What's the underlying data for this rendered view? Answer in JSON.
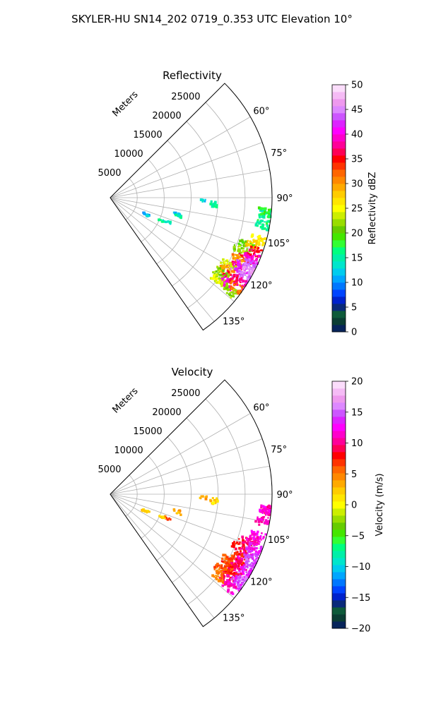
{
  "figure": {
    "title": "SKYLER-HU  SN14_202  0719_0.353 UTC Elevation 10°"
  },
  "chart_data": [
    {
      "type": "polar-sector",
      "title": "Reflectivity",
      "radial_axis_label": "Meters",
      "radial_ticks": [
        5000,
        10000,
        15000,
        20000,
        25000
      ],
      "radial_tick_labels": [
        "5000",
        "10000",
        "15000",
        "20000",
        "25000"
      ],
      "rmax": 30000,
      "angle_range_deg": [
        45,
        145
      ],
      "angle_ticks_labeled": [
        "60°",
        "75°",
        "90°",
        "105°",
        "120°",
        "135°"
      ],
      "angle_tick_values": [
        60,
        75,
        90,
        105,
        120,
        135
      ],
      "gridlines": [
        60,
        70,
        80,
        90,
        100,
        110,
        120,
        130,
        140
      ],
      "grid": true,
      "colorbar": {
        "label": "Reflectivity dBZ",
        "min": 0,
        "max": 50,
        "ticks": [
          0,
          5,
          10,
          15,
          20,
          25,
          30,
          35,
          40,
          45,
          50
        ],
        "tick_labels": [
          "0",
          "5",
          "10",
          "15",
          "20",
          "25",
          "30",
          "35",
          "40",
          "45",
          "50"
        ],
        "colors": [
          "#07245a",
          "#0b3d33",
          "#0e5a3a",
          "#0a2a7a",
          "#0022cc",
          "#0044ff",
          "#0077ff",
          "#00a6ff",
          "#00ccee",
          "#00e6cc",
          "#00f0a8",
          "#00ff80",
          "#33ff33",
          "#44e600",
          "#66cc00",
          "#99dd00",
          "#ccee00",
          "#ffff00",
          "#ffe600",
          "#ffcc00",
          "#ffaa00",
          "#ff8800",
          "#ff6600",
          "#ff3300",
          "#ff0000",
          "#ff0055",
          "#ff0099",
          "#ff00cc",
          "#ff00ff",
          "#dd22ff",
          "#cc55ff",
          "#dd88ff",
          "#ee99ee",
          "#f5bbf5",
          "#fbddfb"
        ]
      },
      "echoes": [
        {
          "theta": 109.5,
          "r": 26700,
          "value": 20
        },
        {
          "theta": 112.0,
          "r": 26000,
          "value": 22
        },
        {
          "theta": 114.0,
          "r": 27500,
          "value": 35
        },
        {
          "theta": 116.0,
          "r": 26500,
          "value": 30
        },
        {
          "theta": 117.5,
          "r": 27700,
          "value": 42
        },
        {
          "theta": 119.0,
          "r": 26500,
          "value": 38
        },
        {
          "theta": 119.5,
          "r": 25200,
          "value": 24
        },
        {
          "theta": 121.0,
          "r": 27300,
          "value": 44
        },
        {
          "theta": 122.0,
          "r": 25500,
          "value": 30
        },
        {
          "theta": 123.5,
          "r": 26800,
          "value": 36
        },
        {
          "theta": 124.5,
          "r": 25000,
          "value": 22
        },
        {
          "theta": 126.0,
          "r": 26800,
          "value": 40
        },
        {
          "theta": 127.0,
          "r": 25300,
          "value": 24
        },
        {
          "theta": 106.0,
          "r": 28500,
          "value": 26
        },
        {
          "theta": 108.0,
          "r": 27800,
          "value": 28
        },
        {
          "theta": 110.5,
          "r": 28700,
          "value": 36
        },
        {
          "theta": 113.0,
          "r": 28500,
          "value": 40
        },
        {
          "theta": 115.5,
          "r": 29000,
          "value": 44
        },
        {
          "theta": 118.0,
          "r": 29200,
          "value": 46
        },
        {
          "theta": 120.5,
          "r": 29200,
          "value": 44
        },
        {
          "theta": 123.0,
          "r": 29000,
          "value": 38
        },
        {
          "theta": 125.5,
          "r": 28800,
          "value": 32
        },
        {
          "theta": 128.0,
          "r": 28000,
          "value": 22
        },
        {
          "theta": 100.0,
          "r": 28700,
          "value": 16
        },
        {
          "theta": 96.0,
          "r": 29300,
          "value": 15
        },
        {
          "theta": 95.5,
          "r": 29100,
          "value": 18
        },
        {
          "theta": 93.0,
          "r": 19200,
          "value": 15
        },
        {
          "theta": 94.5,
          "r": 19500,
          "value": 16
        },
        {
          "theta": 92.0,
          "r": 17300,
          "value": 12
        },
        {
          "theta": 104.0,
          "r": 12700,
          "value": 12
        },
        {
          "theta": 105.5,
          "r": 13200,
          "value": 15
        },
        {
          "theta": 113.0,
          "r": 11500,
          "value": 14
        },
        {
          "theta": 114.0,
          "r": 10500,
          "value": 15
        },
        {
          "theta": 114.5,
          "r": 7300,
          "value": 10
        },
        {
          "theta": 116.0,
          "r": 7200,
          "value": 12
        }
      ]
    },
    {
      "type": "polar-sector",
      "title": "Velocity",
      "radial_axis_label": "Meters",
      "radial_ticks": [
        5000,
        10000,
        15000,
        20000,
        25000
      ],
      "radial_tick_labels": [
        "5000",
        "10000",
        "15000",
        "20000",
        "25000"
      ],
      "rmax": 30000,
      "angle_range_deg": [
        45,
        145
      ],
      "angle_ticks_labeled": [
        "60°",
        "75°",
        "90°",
        "105°",
        "120°",
        "135°"
      ],
      "angle_tick_values": [
        60,
        75,
        90,
        105,
        120,
        135
      ],
      "gridlines": [
        60,
        70,
        80,
        90,
        100,
        110,
        120,
        130,
        140
      ],
      "grid": true,
      "colorbar": {
        "label": "Velocity (m/s)",
        "min": -20,
        "max": 20,
        "ticks": [
          -20,
          -15,
          -10,
          -5,
          0,
          5,
          10,
          15,
          20
        ],
        "tick_labels": [
          "−20",
          "−15",
          "−10",
          "−5",
          "0",
          "5",
          "10",
          "15",
          "20"
        ],
        "colors": [
          "#07245a",
          "#0b3d33",
          "#0e5a3a",
          "#0a2a7a",
          "#0022cc",
          "#0044ff",
          "#0077ff",
          "#00a6ff",
          "#00ccee",
          "#00e6cc",
          "#00f0a8",
          "#00ff80",
          "#33ff33",
          "#44e600",
          "#66cc00",
          "#99dd00",
          "#ccee00",
          "#ffff00",
          "#ffe600",
          "#ffcc00",
          "#ffaa00",
          "#ff8800",
          "#ff6600",
          "#ff3300",
          "#ff0000",
          "#ff0055",
          "#ff0099",
          "#ff00cc",
          "#ff00ff",
          "#dd22ff",
          "#cc55ff",
          "#dd88ff",
          "#ee99ee",
          "#f5bbf5",
          "#fbddfb"
        ]
      },
      "echoes": [
        {
          "theta": 109.5,
          "r": 26700,
          "value": 9
        },
        {
          "theta": 112.0,
          "r": 26000,
          "value": 8
        },
        {
          "theta": 114.0,
          "r": 27500,
          "value": 10
        },
        {
          "theta": 116.0,
          "r": 26500,
          "value": 7
        },
        {
          "theta": 117.5,
          "r": 27700,
          "value": 11
        },
        {
          "theta": 119.0,
          "r": 26500,
          "value": 9
        },
        {
          "theta": 119.5,
          "r": 25200,
          "value": 6
        },
        {
          "theta": 121.0,
          "r": 27300,
          "value": 10
        },
        {
          "theta": 122.0,
          "r": 25500,
          "value": 7
        },
        {
          "theta": 123.5,
          "r": 26800,
          "value": 8
        },
        {
          "theta": 124.5,
          "r": 25000,
          "value": 6
        },
        {
          "theta": 126.0,
          "r": 26800,
          "value": 10
        },
        {
          "theta": 127.0,
          "r": 25300,
          "value": 5
        },
        {
          "theta": 106.0,
          "r": 28500,
          "value": 12
        },
        {
          "theta": 108.0,
          "r": 27800,
          "value": 11
        },
        {
          "theta": 110.5,
          "r": 28700,
          "value": 13
        },
        {
          "theta": 113.0,
          "r": 28500,
          "value": 14
        },
        {
          "theta": 115.5,
          "r": 29000,
          "value": 15
        },
        {
          "theta": 118.0,
          "r": 29200,
          "value": 14
        },
        {
          "theta": 120.5,
          "r": 29200,
          "value": 13
        },
        {
          "theta": 123.0,
          "r": 29000,
          "value": 15
        },
        {
          "theta": 125.5,
          "r": 28800,
          "value": 14
        },
        {
          "theta": 128.0,
          "r": 28000,
          "value": 11
        },
        {
          "theta": 100.0,
          "r": 28700,
          "value": 11
        },
        {
          "theta": 96.0,
          "r": 29300,
          "value": 10
        },
        {
          "theta": 95.5,
          "r": 29100,
          "value": 12
        },
        {
          "theta": 93.0,
          "r": 19200,
          "value": 2
        },
        {
          "theta": 94.5,
          "r": 19500,
          "value": 1
        },
        {
          "theta": 92.0,
          "r": 17300,
          "value": 3
        },
        {
          "theta": 104.0,
          "r": 12700,
          "value": 4
        },
        {
          "theta": 105.5,
          "r": 13200,
          "value": 3
        },
        {
          "theta": 113.0,
          "r": 11500,
          "value": 6
        },
        {
          "theta": 114.0,
          "r": 10500,
          "value": 2
        },
        {
          "theta": 114.5,
          "r": 7300,
          "value": 1
        },
        {
          "theta": 116.0,
          "r": 7200,
          "value": 3
        }
      ]
    }
  ]
}
